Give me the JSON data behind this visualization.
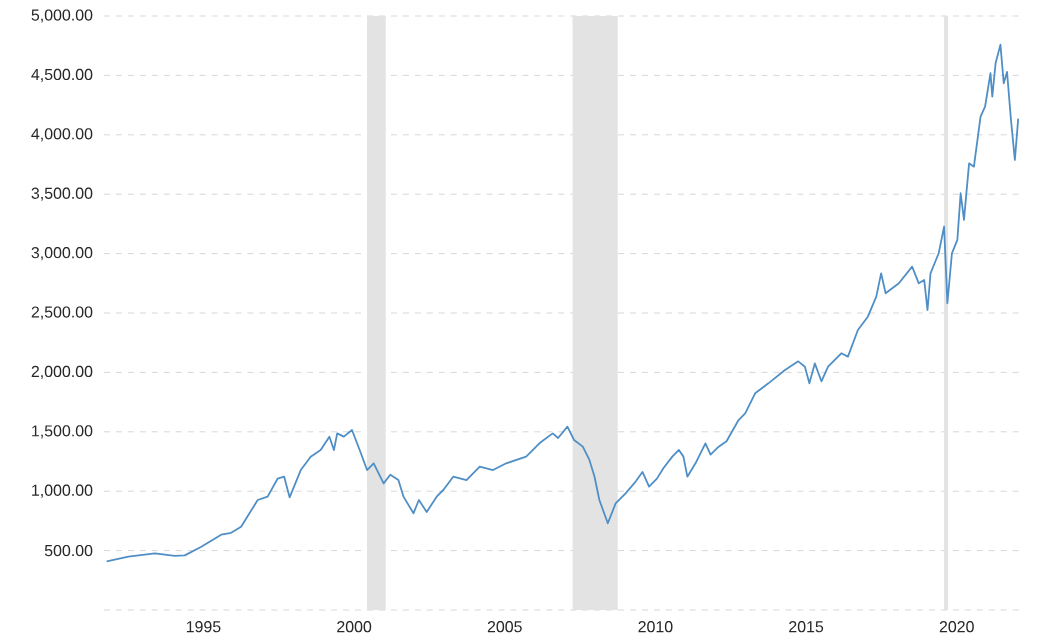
{
  "chart_data": {
    "type": "line",
    "x": [
      1991.79,
      1992.51,
      1993.39,
      1994.05,
      1994.38,
      1994.93,
      1995.59,
      1995.92,
      1996.25,
      1996.8,
      1997.13,
      1997.46,
      1997.68,
      1997.86,
      1998.23,
      1998.56,
      1998.89,
      1999.18,
      1999.33,
      1999.44,
      1999.66,
      1999.93,
      2000.21,
      2000.43,
      2000.65,
      2000.98,
      2001.2,
      2001.47,
      2001.64,
      2001.97,
      2002.15,
      2002.41,
      2002.74,
      2002.96,
      2003.29,
      2003.73,
      2004.17,
      2004.61,
      2005.05,
      2005.71,
      2006.15,
      2006.59,
      2006.77,
      2007.08,
      2007.3,
      2007.59,
      2007.81,
      2007.98,
      2008.14,
      2008.42,
      2008.68,
      2009.01,
      2009.35,
      2009.57,
      2009.79,
      2010.05,
      2010.27,
      2010.56,
      2010.78,
      2010.93,
      2011.06,
      2011.33,
      2011.66,
      2011.83,
      2012.1,
      2012.36,
      2012.76,
      2012.98,
      2013.31,
      2013.75,
      2014.3,
      2014.74,
      2014.96,
      2015.11,
      2015.29,
      2015.51,
      2015.73,
      2016.17,
      2016.39,
      2016.72,
      2017.05,
      2017.33,
      2017.49,
      2017.64,
      2018.08,
      2018.52,
      2018.74,
      2018.92,
      2019.03,
      2019.13,
      2019.31,
      2019.4,
      2019.58,
      2019.69,
      2019.84,
      2020.02,
      2020.13,
      2020.24,
      2020.41,
      2020.57,
      2020.79,
      2020.94,
      2021.12,
      2021.18,
      2021.29,
      2021.45,
      2021.56,
      2021.67,
      2021.8,
      2021.93,
      2022.04
    ],
    "series": [
      {
        "color": "#4f8fc6",
        "values": [
          410,
          449,
          477,
          455,
          460,
          533,
          634,
          650,
          700,
          926,
          954,
          1105,
          1122,
          948,
          1178,
          1290,
          1347,
          1459,
          1347,
          1487,
          1459,
          1515,
          1330,
          1178,
          1235,
          1066,
          1139,
          1094,
          954,
          814,
          926,
          825,
          954,
          1010,
          1122,
          1094,
          1207,
          1178,
          1235,
          1291,
          1403,
          1487,
          1448,
          1543,
          1431,
          1375,
          1263,
          1122,
          926,
          730,
          898,
          982,
          1083,
          1162,
          1038,
          1106,
          1195,
          1291,
          1347,
          1291,
          1122,
          1235,
          1403,
          1308,
          1375,
          1420,
          1599,
          1655,
          1824,
          1908,
          2020,
          2093,
          2048,
          1908,
          2076,
          1925,
          2048,
          2161,
          2133,
          2357,
          2469,
          2638,
          2834,
          2666,
          2750,
          2890,
          2750,
          2778,
          2525,
          2834,
          2946,
          3002,
          3227,
          2582,
          3002,
          3115,
          3508,
          3283,
          3760,
          3732,
          4153,
          4237,
          4518,
          4321,
          4602,
          4759,
          4433,
          4529,
          4125,
          3788,
          4136
        ]
      }
    ],
    "xlim": [
      1991.7,
      2022.1
    ],
    "ylim": [
      0,
      5000
    ],
    "xticks": [
      1995,
      2000,
      2005,
      2010,
      2015,
      2020
    ],
    "yticks": [
      {
        "value": 0,
        "label": null
      },
      {
        "value": 500,
        "label": "500.00"
      },
      {
        "value": 1000,
        "label": "1,000.00"
      },
      {
        "value": 1500,
        "label": "1,500.00"
      },
      {
        "value": 2000,
        "label": "2,000.00"
      },
      {
        "value": 2500,
        "label": "2,500.00"
      },
      {
        "value": 3000,
        "label": "3,000.00"
      },
      {
        "value": 3500,
        "label": "3,500.00"
      },
      {
        "value": 4000,
        "label": "4,000.00"
      },
      {
        "value": 4500,
        "label": "4,500.00"
      },
      {
        "value": 5000,
        "label": "5,000.00"
      }
    ],
    "bands": [
      {
        "axis": "x",
        "from": 2000.43,
        "to": 2001.05,
        "color": "#e3e3e3"
      },
      {
        "axis": "x",
        "from": 2007.25,
        "to": 2008.75,
        "color": "#e3e3e3"
      },
      {
        "axis": "x",
        "from": 2019.58,
        "to": 2019.71,
        "color": "#e3e3e3"
      }
    ],
    "grid": "y",
    "marker": "none",
    "line_style": "solid"
  }
}
